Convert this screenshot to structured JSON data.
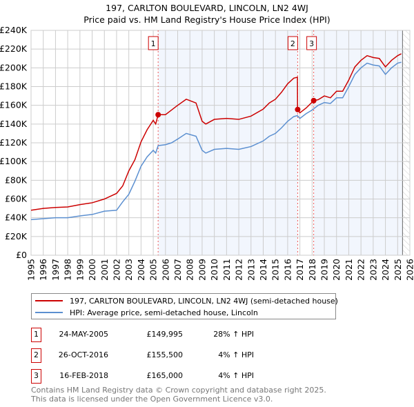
{
  "chart_data": {
    "type": "line",
    "title": "197, CARLTON BOULEVARD, LINCOLN, LN2 4WJ",
    "subtitle": "Price paid vs. HM Land Registry's House Price Index (HPI)",
    "xlim": [
      1995,
      2026
    ],
    "ylim": [
      0,
      240000
    ],
    "xticks": [
      "1995",
      "1996",
      "1997",
      "1998",
      "1999",
      "2000",
      "2001",
      "2002",
      "2003",
      "2004",
      "2005",
      "2006",
      "2007",
      "2008",
      "2009",
      "2010",
      "2011",
      "2012",
      "2013",
      "2014",
      "2015",
      "2016",
      "2017",
      "2018",
      "2019",
      "2020",
      "2021",
      "2022",
      "2023",
      "2024",
      "2025",
      "2026"
    ],
    "yticks": [
      "£0",
      "£20K",
      "£40K",
      "£60K",
      "£80K",
      "£100K",
      "£120K",
      "£140K",
      "£160K",
      "£180K",
      "£200K",
      "£220K",
      "£240K"
    ],
    "grid": true,
    "series": [
      {
        "name": "197, CARLTON BOULEVARD, LINCOLN, LN2 4WJ (semi-detached house)",
        "color": "#cc0000",
        "x": [
          1995,
          1996,
          1997,
          1998,
          1999,
          2000,
          2001,
          2002,
          2002.5,
          2003,
          2003.5,
          2004,
          2004.5,
          2005,
          2005.2,
          2005.4,
          2006,
          2006.5,
          2007,
          2007.7,
          2008.5,
          2009,
          2009.3,
          2010,
          2011,
          2012,
          2013,
          2014,
          2014.5,
          2015,
          2015.5,
          2016,
          2016.5,
          2016.8,
          2016.81,
          2017,
          2017.5,
          2018.13,
          2018.5,
          2019,
          2019.5,
          2020,
          2020.5,
          2021,
          2021.5,
          2022,
          2022.5,
          2023,
          2023.5,
          2024,
          2024.5,
          2025,
          2025.3
        ],
        "values": [
          48000,
          50000,
          51000,
          51500,
          54000,
          56000,
          60000,
          66000,
          74000,
          90000,
          102000,
          121000,
          134000,
          144000,
          140000,
          149995,
          150000,
          155000,
          160000,
          166500,
          162500,
          143000,
          140000,
          145000,
          146000,
          145000,
          148500,
          156000,
          162500,
          166500,
          174000,
          183000,
          189000,
          190000,
          155500,
          152000,
          157000,
          165000,
          166000,
          170000,
          168000,
          175000,
          175000,
          187000,
          201000,
          208000,
          213000,
          211000,
          210000,
          201000,
          208000,
          213000,
          215000
        ]
      },
      {
        "name": "HPI: Average price, semi-detached house, Lincoln",
        "color": "#5b8fd0",
        "x": [
          1995,
          1996,
          1997,
          1998,
          1999,
          2000,
          2001,
          2002,
          2002.5,
          2003,
          2003.5,
          2004,
          2004.5,
          2005,
          2005.2,
          2005.4,
          2006,
          2006.5,
          2007,
          2007.7,
          2008.5,
          2009,
          2009.3,
          2010,
          2011,
          2012,
          2013,
          2014,
          2014.5,
          2015,
          2015.5,
          2016,
          2016.5,
          2016.8,
          2017,
          2017.5,
          2018,
          2018.5,
          2019,
          2019.5,
          2020,
          2020.5,
          2021,
          2021.5,
          2022,
          2022.5,
          2023,
          2023.5,
          2024,
          2024.5,
          2025,
          2025.3
        ],
        "values": [
          38000,
          39000,
          40000,
          40000,
          42000,
          43500,
          47000,
          48000,
          57000,
          65000,
          79000,
          95000,
          105000,
          112000,
          109000,
          117000,
          118000,
          120000,
          124000,
          130000,
          127000,
          112000,
          109000,
          113000,
          114000,
          113000,
          116000,
          122000,
          127000,
          130000,
          136000,
          143000,
          148000,
          149000,
          146000,
          151000,
          155000,
          160000,
          163000,
          162000,
          168000,
          168000,
          180000,
          193000,
          200000,
          205000,
          203000,
          202000,
          193000,
          200000,
          205000,
          206000
        ]
      }
    ],
    "sales": [
      {
        "n": "1",
        "date": "24-MAY-2005",
        "price": "£149,995",
        "pct": "28% ↑ HPI",
        "x": 2005.4,
        "y": 149995
      },
      {
        "n": "2",
        "date": "26-OCT-2016",
        "price": "£155,500",
        "pct": "4% ↑ HPI",
        "x": 2016.82,
        "y": 155500
      },
      {
        "n": "3",
        "date": "16-FEB-2018",
        "price": "£165,000",
        "pct": "4% ↑ HPI",
        "x": 2018.13,
        "y": 165000
      }
    ]
  },
  "footer": {
    "line1": "Contains HM Land Registry data © Crown copyright and database right 2025.",
    "line2": "This data is licensed under the Open Government Licence v3.0."
  }
}
